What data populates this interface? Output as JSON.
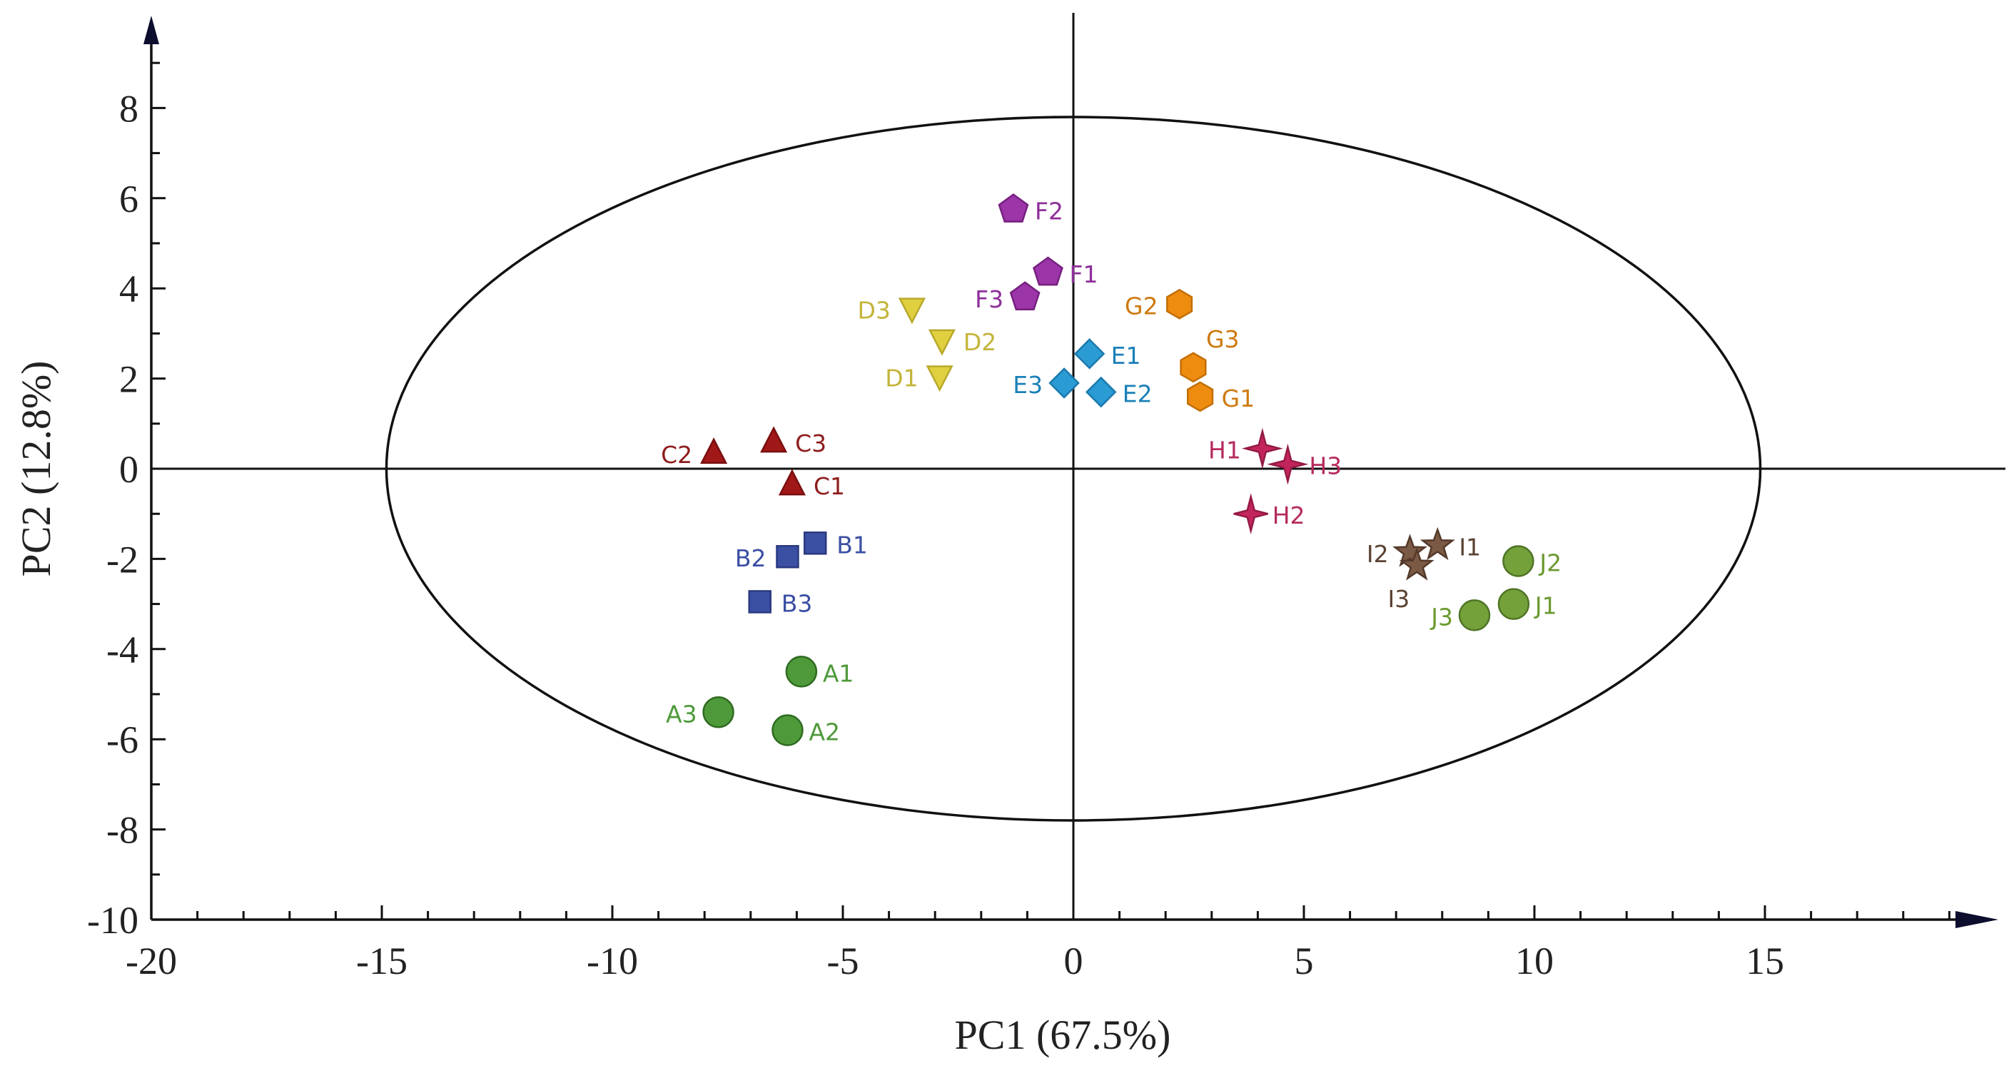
{
  "chart_data": {
    "type": "scatter",
    "title": "",
    "xlabel": "PC1 (67.5%)",
    "ylabel": "PC2 (12.8%)",
    "xlim": [
      -20,
      20
    ],
    "ylim": [
      -10,
      10
    ],
    "xticks": [
      -20,
      -15,
      -10,
      -5,
      0,
      5,
      10,
      15
    ],
    "yticks": [
      -10,
      -8,
      -6,
      -4,
      -2,
      0,
      2,
      4,
      6,
      8
    ],
    "confidence_ellipse": {
      "cx": 0,
      "cy": 0,
      "rx": 14.9,
      "ry": 7.8
    },
    "series": [
      {
        "name": "A",
        "marker": "circle",
        "color": "#4E9A3A",
        "stroke": "#2F6B21",
        "label_color": "#4E9A3A",
        "points": [
          {
            "label": "A1",
            "x": -5.9,
            "y": -4.5,
            "label_pos": "right"
          },
          {
            "label": "A2",
            "x": -6.2,
            "y": -5.8,
            "label_pos": "right"
          },
          {
            "label": "A3",
            "x": -7.7,
            "y": -5.4,
            "label_pos": "left"
          }
        ]
      },
      {
        "name": "B",
        "marker": "square",
        "color": "#3B4FA3",
        "stroke": "#2A3A80",
        "label_color": "#3B4FA3",
        "points": [
          {
            "label": "B1",
            "x": -5.6,
            "y": -1.65,
            "label_pos": "right"
          },
          {
            "label": "B2",
            "x": -6.2,
            "y": -1.95,
            "label_pos": "left"
          },
          {
            "label": "B3",
            "x": -6.8,
            "y": -2.95,
            "label_pos": "right"
          }
        ]
      },
      {
        "name": "C",
        "marker": "triangle-up",
        "color": "#A01818",
        "stroke": "#7A0F0F",
        "label_color": "#8E1C1C",
        "points": [
          {
            "label": "C1",
            "x": -6.1,
            "y": -0.35,
            "label_pos": "right"
          },
          {
            "label": "C2",
            "x": -7.8,
            "y": 0.35,
            "label_pos": "left"
          },
          {
            "label": "C3",
            "x": -6.5,
            "y": 0.6,
            "label_pos": "right"
          }
        ]
      },
      {
        "name": "D",
        "marker": "triangle-down",
        "color": "#E0D040",
        "stroke": "#B8A82A",
        "label_color": "#C4B43A",
        "points": [
          {
            "label": "D1",
            "x": -2.9,
            "y": 2.05,
            "label_pos": "left"
          },
          {
            "label": "D2",
            "x": -2.85,
            "y": 2.85,
            "label_pos": "right"
          },
          {
            "label": "D3",
            "x": -3.5,
            "y": 3.55,
            "label_pos": "left"
          }
        ]
      },
      {
        "name": "E",
        "marker": "diamond",
        "color": "#2B9BD3",
        "stroke": "#1A7AAE",
        "label_color": "#1B80B8",
        "points": [
          {
            "label": "E1",
            "x": 0.35,
            "y": 2.55,
            "label_pos": "right"
          },
          {
            "label": "E2",
            "x": 0.6,
            "y": 1.7,
            "label_pos": "right"
          },
          {
            "label": "E3",
            "x": -0.2,
            "y": 1.9,
            "label_pos": "left"
          }
        ]
      },
      {
        "name": "F",
        "marker": "pentagon",
        "color": "#9B35A8",
        "stroke": "#76207F",
        "label_color": "#8E2E9A",
        "points": [
          {
            "label": "F1",
            "x": -0.55,
            "y": 4.35,
            "label_pos": "right"
          },
          {
            "label": "F2",
            "x": -1.3,
            "y": 5.75,
            "label_pos": "right"
          },
          {
            "label": "F3",
            "x": -1.05,
            "y": 3.8,
            "label_pos": "left"
          }
        ]
      },
      {
        "name": "G",
        "marker": "hexagon",
        "color": "#EE8C0F",
        "stroke": "#C26E05",
        "label_color": "#CD7A10",
        "points": [
          {
            "label": "G1",
            "x": 2.75,
            "y": 1.6,
            "label_pos": "right"
          },
          {
            "label": "G2",
            "x": 2.3,
            "y": 3.65,
            "label_pos": "left"
          },
          {
            "label": "G3",
            "x": 2.6,
            "y": 2.25,
            "label_pos": "above-right"
          }
        ]
      },
      {
        "name": "H",
        "marker": "star4",
        "color": "#C2255C",
        "stroke": "#951A45",
        "label_color": "#B52A5E",
        "points": [
          {
            "label": "H1",
            "x": 4.1,
            "y": 0.45,
            "label_pos": "left"
          },
          {
            "label": "H2",
            "x": 3.85,
            "y": -1.0,
            "label_pos": "right"
          },
          {
            "label": "H3",
            "x": 4.65,
            "y": 0.1,
            "label_pos": "right"
          }
        ]
      },
      {
        "name": "I",
        "marker": "star5",
        "color": "#7A5A44",
        "stroke": "#54392A",
        "label_color": "#5B4233",
        "points": [
          {
            "label": "I1",
            "x": 7.9,
            "y": -1.7,
            "label_pos": "right"
          },
          {
            "label": "I2",
            "x": 7.3,
            "y": -1.85,
            "label_pos": "left"
          },
          {
            "label": "I3",
            "x": 7.45,
            "y": -2.15,
            "label_pos": "below-left"
          }
        ]
      },
      {
        "name": "J",
        "marker": "circle",
        "color": "#74A13A",
        "stroke": "#4F7526",
        "label_color": "#6B9A30",
        "points": [
          {
            "label": "J1",
            "x": 9.55,
            "y": -3.0,
            "label_pos": "right"
          },
          {
            "label": "J2",
            "x": 9.65,
            "y": -2.05,
            "label_pos": "right"
          },
          {
            "label": "J3",
            "x": 8.7,
            "y": -3.25,
            "label_pos": "left"
          }
        ]
      }
    ]
  }
}
